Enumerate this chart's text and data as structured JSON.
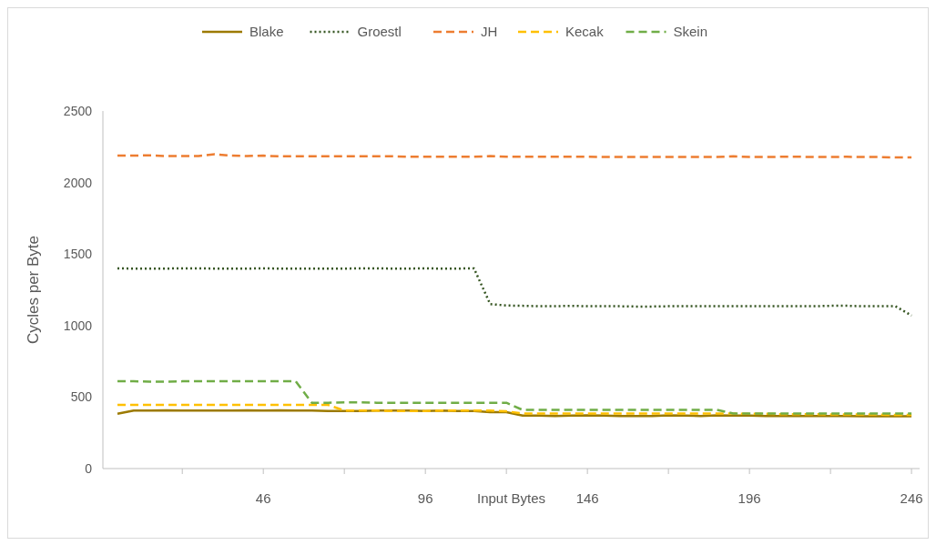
{
  "chart_data": {
    "type": "line",
    "xlabel": "Input Bytes",
    "ylabel": "Cycles per Byte",
    "x": [
      1,
      6,
      11,
      16,
      21,
      26,
      31,
      36,
      41,
      46,
      51,
      56,
      61,
      66,
      71,
      76,
      81,
      86,
      91,
      96,
      101,
      106,
      111,
      116,
      121,
      126,
      131,
      136,
      141,
      146,
      151,
      156,
      161,
      166,
      171,
      176,
      181,
      186,
      191,
      196,
      201,
      206,
      211,
      216,
      221,
      226,
      231,
      236,
      241,
      246
    ],
    "xlim": [
      -3.5,
      248.5
    ],
    "xticks": [
      {
        "value": 21,
        "label": null
      },
      46,
      {
        "value": 71,
        "label": null
      },
      96,
      {
        "value": 121,
        "label": null
      },
      146,
      {
        "value": 171,
        "label": null
      },
      196,
      {
        "value": 221,
        "label": null
      },
      246
    ],
    "ylim": [
      0,
      2500
    ],
    "yticks": [
      0,
      500,
      1000,
      1500,
      2000,
      2500
    ],
    "grid": false,
    "legend": "top",
    "marker": "none",
    "series": [
      {
        "name": "Blake",
        "color": "#9c7a00",
        "line_style": "solid",
        "values": [
          383,
          405,
          405,
          407,
          405,
          405,
          405,
          405,
          407,
          405,
          407,
          405,
          405,
          403,
          403,
          403,
          405,
          405,
          405,
          403,
          405,
          403,
          403,
          395,
          395,
          370,
          370,
          368,
          370,
          372,
          370,
          368,
          368,
          368,
          372,
          370,
          368,
          372,
          370,
          370,
          368,
          368,
          368,
          368,
          368,
          368,
          366,
          366,
          366,
          365
        ]
      },
      {
        "name": "Groestl",
        "color": "#375623",
        "line_style": "dotted",
        "values": [
          1400,
          1398,
          1398,
          1398,
          1400,
          1400,
          1398,
          1398,
          1398,
          1400,
          1398,
          1398,
          1398,
          1398,
          1398,
          1400,
          1400,
          1398,
          1398,
          1400,
          1398,
          1398,
          1400,
          1150,
          1140,
          1138,
          1135,
          1135,
          1138,
          1135,
          1135,
          1135,
          1133,
          1133,
          1135,
          1135,
          1135,
          1135,
          1135,
          1135,
          1135,
          1135,
          1135,
          1135,
          1138,
          1138,
          1135,
          1135,
          1135,
          1070
        ]
      },
      {
        "name": "JH",
        "color": "#ed7d31",
        "line_style": "dashed",
        "values": [
          2188,
          2188,
          2190,
          2185,
          2185,
          2185,
          2198,
          2188,
          2185,
          2188,
          2183,
          2183,
          2183,
          2183,
          2183,
          2183,
          2183,
          2183,
          2180,
          2180,
          2180,
          2180,
          2180,
          2185,
          2180,
          2180,
          2180,
          2180,
          2180,
          2180,
          2178,
          2178,
          2178,
          2178,
          2178,
          2178,
          2178,
          2178,
          2183,
          2178,
          2178,
          2180,
          2180,
          2178,
          2178,
          2180,
          2178,
          2178,
          2175,
          2175
        ]
      },
      {
        "name": "Kecak",
        "color": "#ffc000",
        "line_style": "dashed",
        "values": [
          445,
          445,
          445,
          445,
          445,
          445,
          445,
          445,
          445,
          445,
          445,
          445,
          445,
          445,
          405,
          405,
          405,
          403,
          403,
          403,
          405,
          405,
          405,
          405,
          400,
          385,
          385,
          385,
          385,
          385,
          385,
          385,
          385,
          385,
          385,
          385,
          385,
          385,
          385,
          383,
          383,
          380,
          380,
          380,
          378,
          378,
          378,
          378,
          375,
          375
        ]
      },
      {
        "name": "Skein",
        "color": "#70ad47",
        "line_style": "dashed",
        "values": [
          610,
          610,
          608,
          608,
          610,
          610,
          610,
          610,
          610,
          610,
          610,
          610,
          460,
          460,
          463,
          463,
          460,
          460,
          460,
          460,
          460,
          460,
          460,
          460,
          460,
          410,
          410,
          410,
          410,
          410,
          410,
          410,
          410,
          410,
          410,
          410,
          410,
          410,
          385,
          385,
          385,
          385,
          385,
          385,
          385,
          385,
          385,
          385,
          385,
          385
        ]
      }
    ]
  }
}
